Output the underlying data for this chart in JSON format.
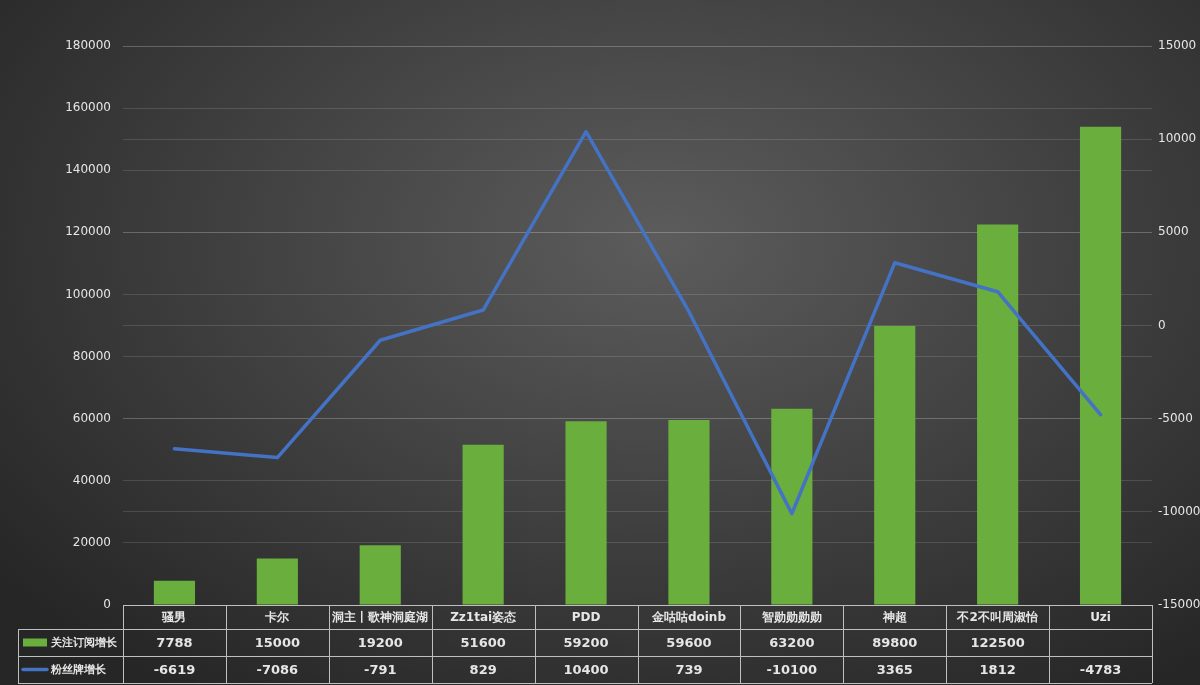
{
  "chart_data": {
    "type": "bar",
    "categories": [
      "骚男",
      "卡尔",
      "洞主丨歌神洞庭湖",
      "Zz1tai姿态",
      "PDD",
      "金咕咕doinb",
      "智勋勋勋勋",
      "神超",
      "不2不叫周淑怡",
      "Uzi"
    ],
    "series": [
      {
        "name": "关注订阅增长",
        "color": "#6aae3e",
        "values": [
          7788,
          15000,
          19200,
          51600,
          59200,
          59600,
          63200,
          89800,
          122500,
          154000
        ],
        "value_labels": [
          "7788",
          "15000",
          "19200",
          "51600",
          "59200",
          "59600",
          "63200",
          "89800",
          "122500",
          null
        ]
      },
      {
        "name": "粉丝牌增长",
        "type": "line",
        "axis": "y2",
        "color": "#4472c4",
        "values": [
          -6619,
          -7086,
          -791,
          829,
          10400,
          739,
          -10100,
          3365,
          1812,
          -4783
        ],
        "value_labels": [
          "-6619",
          "-7086",
          "-791",
          "829",
          "10400",
          "739",
          "-10100",
          "3365",
          "1812",
          "-4783"
        ]
      }
    ],
    "ylim": [
      0,
      180000
    ],
    "yticks": [
      0,
      20000,
      40000,
      60000,
      80000,
      100000,
      120000,
      140000,
      160000,
      180000
    ],
    "y2lim": [
      -15000,
      15000
    ],
    "y2ticks": [
      -15000,
      -10000,
      -5000,
      0,
      5000,
      10000,
      15000
    ],
    "grid": "y",
    "legend": "bottom",
    "marker": "none",
    "line_style": "solid"
  }
}
